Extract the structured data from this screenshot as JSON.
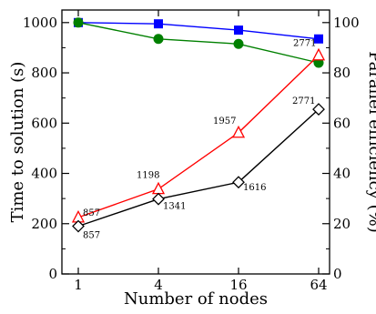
{
  "chart_data": {
    "type": "line",
    "x_categories": [
      "1",
      "4",
      "16",
      "64"
    ],
    "xlabel": "Number of nodes",
    "ylabel_left": "Time to solution (s)",
    "ylabel_right": "Parallel efficiency (%)",
    "ylim_left": [
      0,
      1050
    ],
    "ylim_right": [
      0,
      105
    ],
    "yticks_left": [
      "0",
      "200",
      "400",
      "600",
      "800",
      "1000"
    ],
    "yticks_right": [
      "0",
      "20",
      "40",
      "60",
      "80",
      "100"
    ],
    "grid": false,
    "legend": "none",
    "series": [
      {
        "axis": "right",
        "color": "#0000ff",
        "marker": "square-filled",
        "values": [
          100,
          99.5,
          97,
          93.5
        ]
      },
      {
        "axis": "right",
        "color": "#008000",
        "marker": "circle-filled",
        "values": [
          100,
          93.5,
          91.5,
          84
        ]
      },
      {
        "axis": "left",
        "color": "#ff0000",
        "marker": "triangle-open",
        "values": [
          225,
          338,
          562,
          870
        ],
        "labels": [
          "857",
          "1198",
          "1957",
          "2771"
        ]
      },
      {
        "axis": "left",
        "color": "#000000",
        "marker": "diamond-open",
        "values": [
          190,
          298,
          365,
          655
        ],
        "labels": [
          "857",
          "1341",
          "1616",
          "2771"
        ]
      }
    ]
  }
}
